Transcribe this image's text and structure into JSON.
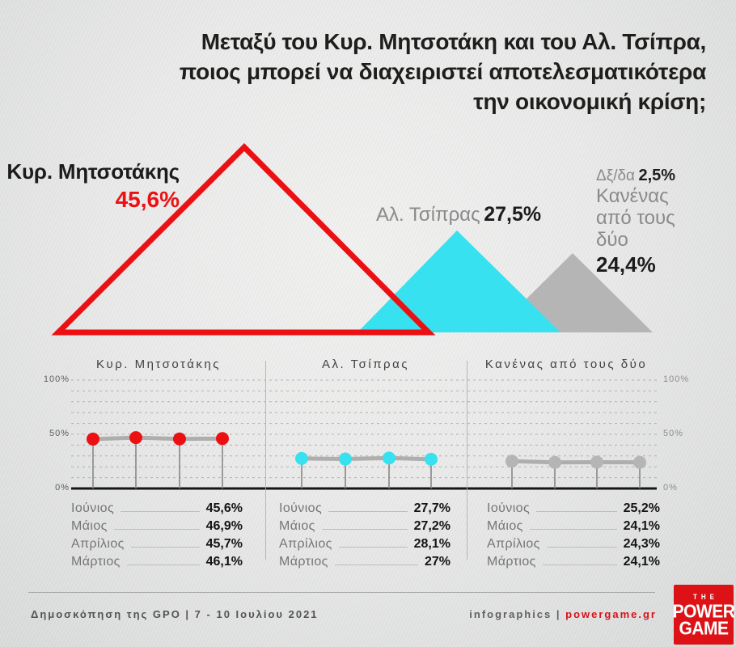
{
  "title": {
    "lines": [
      "Μεταξύ του Κυρ. Μητσοτάκη και του Αλ. Τσίπρα,",
      "ποιος μπορεί να διαχειριστεί αποτελεσματικότερα",
      "την οικονομική κρίση;"
    ]
  },
  "colors": {
    "red": "#ec1013",
    "cyan": "#38e1ef",
    "gray": "#b5b5b5",
    "logo_red": "#dc1216"
  },
  "triangle_chart": {
    "mitsotakis": {
      "name": "Κυρ. Μητσοτάκης",
      "value": "45,6%"
    },
    "tsipras": {
      "name": "Αλ. Τσίπρας",
      "value": "27,5%"
    },
    "dk": {
      "label": "Δξ/δα",
      "value": "2,5%"
    },
    "none": {
      "lines": [
        "Κανένας",
        "από τους",
        "δύο"
      ],
      "value": "24,4%"
    }
  },
  "chart_data": [
    {
      "type": "area",
      "title": "Μεταξύ του Κυρ. Μητσοτάκη και του Αλ. Τσίπρα, ποιος μπορεί να διαχειριστεί αποτελεσματικότερα την οικονομική κρίση;",
      "categories": [
        "Κυρ. Μητσοτάκης",
        "Αλ. Τσίπρας",
        "Κανένας από τους δύο",
        "Δξ/δα"
      ],
      "values": [
        45.6,
        27.5,
        24.4,
        2.5
      ],
      "unit": "%",
      "colors": [
        "#ec1013",
        "#38e1ef",
        "#b5b5b5",
        null
      ]
    },
    {
      "type": "line",
      "categories": [
        "Ιούνιος",
        "Μάιος",
        "Απρίλιος",
        "Μάρτιος"
      ],
      "series": [
        {
          "name": "Κυρ. Μητσοτάκης",
          "color": "#ec1013",
          "values": [
            45.6,
            46.9,
            45.7,
            46.1
          ]
        },
        {
          "name": "Αλ. Τσίπρας",
          "color": "#38e1ef",
          "values": [
            27.7,
            27.2,
            28.1,
            27.0
          ]
        },
        {
          "name": "Κανένας από τους δύο",
          "color": "#b5b5b5",
          "values": [
            25.2,
            24.1,
            24.3,
            24.1
          ]
        }
      ],
      "ylim": [
        0,
        100
      ],
      "yticks": [
        "100%",
        "50%",
        "0%"
      ],
      "grid": true,
      "legend_position": "none"
    }
  ],
  "tables": [
    {
      "rows": [
        {
          "month": "Ιούνιος",
          "value": "45,6%"
        },
        {
          "month": "Μάιος",
          "value": "46,9%"
        },
        {
          "month": "Απρίλιος",
          "value": "45,7%"
        },
        {
          "month": "Μάρτιος",
          "value": "46,1%"
        }
      ]
    },
    {
      "rows": [
        {
          "month": "Ιούνιος",
          "value": "27,7%"
        },
        {
          "month": "Μάιος",
          "value": "27,2%"
        },
        {
          "month": "Απρίλιος",
          "value": "28,1%"
        },
        {
          "month": "Μάρτιος",
          "value": "27%"
        }
      ]
    },
    {
      "rows": [
        {
          "month": "Ιούνιος",
          "value": "25,2%"
        },
        {
          "month": "Μάιος",
          "value": "24,1%"
        },
        {
          "month": "Απρίλιος",
          "value": "24,3%"
        },
        {
          "month": "Μάρτιος",
          "value": "24,1%"
        }
      ]
    }
  ],
  "footer": {
    "source": "Δημοσκόπηση της GPO | 7 - 10 Ιουλίου 2021",
    "credits_prefix": "infographics | ",
    "credits_site": "powergame.gr",
    "logo": {
      "the": "THE",
      "line1": "POWER",
      "line2": "GAME"
    }
  }
}
